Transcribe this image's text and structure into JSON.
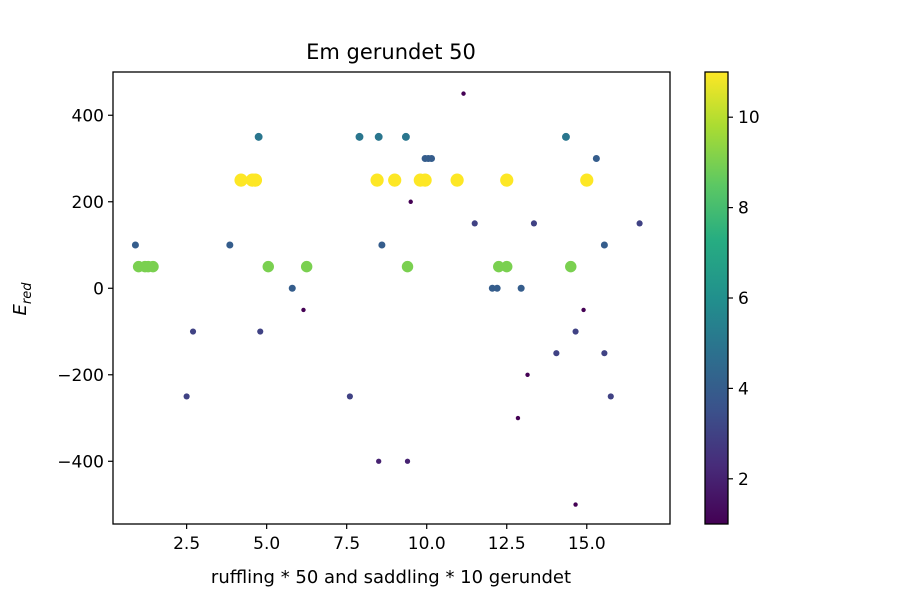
{
  "chart_data": {
    "type": "scatter",
    "title": "Em gerundet 50",
    "xlabel": "ruffling * 50 and saddling * 10 gerundet",
    "ylabel_main": "E",
    "ylabel_sub": "red",
    "xlim": [
      0.2,
      17.6
    ],
    "ylim": [
      -545,
      500
    ],
    "xticks": [
      2.5,
      5.0,
      7.5,
      10.0,
      12.5,
      15.0
    ],
    "yticks": [
      -400,
      -200,
      0,
      200,
      400
    ],
    "grid": false,
    "colorbar": {
      "label": "",
      "range": [
        1,
        11
      ],
      "ticks": [
        2,
        4,
        6,
        8,
        10
      ],
      "colormap": "viridis"
    },
    "points": [
      {
        "x": 0.9,
        "y": 100,
        "c": 4
      },
      {
        "x": 1.0,
        "y": 50,
        "c": 9
      },
      {
        "x": 1.2,
        "y": 50,
        "c": 9
      },
      {
        "x": 1.3,
        "y": 50,
        "c": 9
      },
      {
        "x": 1.45,
        "y": 50,
        "c": 9
      },
      {
        "x": 2.5,
        "y": -250,
        "c": 3
      },
      {
        "x": 2.7,
        "y": -100,
        "c": 3
      },
      {
        "x": 3.85,
        "y": 100,
        "c": 4
      },
      {
        "x": 4.2,
        "y": 250,
        "c": 11
      },
      {
        "x": 4.55,
        "y": 250,
        "c": 11
      },
      {
        "x": 4.65,
        "y": 250,
        "c": 11
      },
      {
        "x": 4.75,
        "y": 350,
        "c": 5
      },
      {
        "x": 4.8,
        "y": -100,
        "c": 3
      },
      {
        "x": 5.05,
        "y": 50,
        "c": 9
      },
      {
        "x": 5.8,
        "y": 0,
        "c": 4
      },
      {
        "x": 6.15,
        "y": -50,
        "c": 1
      },
      {
        "x": 6.25,
        "y": 50,
        "c": 9
      },
      {
        "x": 7.6,
        "y": -250,
        "c": 3
      },
      {
        "x": 7.9,
        "y": 350,
        "c": 5
      },
      {
        "x": 8.45,
        "y": 250,
        "c": 11
      },
      {
        "x": 8.5,
        "y": 350,
        "c": 5
      },
      {
        "x": 8.5,
        "y": -400,
        "c": 2
      },
      {
        "x": 8.6,
        "y": 100,
        "c": 4
      },
      {
        "x": 9.0,
        "y": 250,
        "c": 11
      },
      {
        "x": 9.35,
        "y": 350,
        "c": 5
      },
      {
        "x": 9.4,
        "y": 50,
        "c": 9
      },
      {
        "x": 9.4,
        "y": -400,
        "c": 2
      },
      {
        "x": 9.5,
        "y": 200,
        "c": 1
      },
      {
        "x": 9.8,
        "y": 250,
        "c": 11
      },
      {
        "x": 9.95,
        "y": 250,
        "c": 11
      },
      {
        "x": 9.95,
        "y": 300,
        "c": 4
      },
      {
        "x": 10.05,
        "y": 300,
        "c": 4
      },
      {
        "x": 10.15,
        "y": 300,
        "c": 4
      },
      {
        "x": 10.95,
        "y": 250,
        "c": 11
      },
      {
        "x": 11.15,
        "y": 450,
        "c": 1
      },
      {
        "x": 11.5,
        "y": 150,
        "c": 3
      },
      {
        "x": 12.05,
        "y": 0,
        "c": 4
      },
      {
        "x": 12.2,
        "y": 0,
        "c": 4
      },
      {
        "x": 12.25,
        "y": 50,
        "c": 9
      },
      {
        "x": 12.5,
        "y": 50,
        "c": 9
      },
      {
        "x": 12.5,
        "y": 250,
        "c": 11
      },
      {
        "x": 12.85,
        "y": -300,
        "c": 1
      },
      {
        "x": 12.95,
        "y": 0,
        "c": 4
      },
      {
        "x": 13.15,
        "y": -200,
        "c": 1
      },
      {
        "x": 13.35,
        "y": 150,
        "c": 3
      },
      {
        "x": 14.05,
        "y": -150,
        "c": 3
      },
      {
        "x": 14.35,
        "y": 350,
        "c": 5
      },
      {
        "x": 14.5,
        "y": 50,
        "c": 9
      },
      {
        "x": 14.65,
        "y": -500,
        "c": 1
      },
      {
        "x": 14.65,
        "y": -100,
        "c": 3
      },
      {
        "x": 14.9,
        "y": -50,
        "c": 1
      },
      {
        "x": 15.0,
        "y": 250,
        "c": 11
      },
      {
        "x": 15.3,
        "y": 300,
        "c": 4
      },
      {
        "x": 15.55,
        "y": 100,
        "c": 4
      },
      {
        "x": 15.55,
        "y": -150,
        "c": 3
      },
      {
        "x": 15.75,
        "y": -250,
        "c": 3
      },
      {
        "x": 16.65,
        "y": 150,
        "c": 3
      }
    ]
  }
}
